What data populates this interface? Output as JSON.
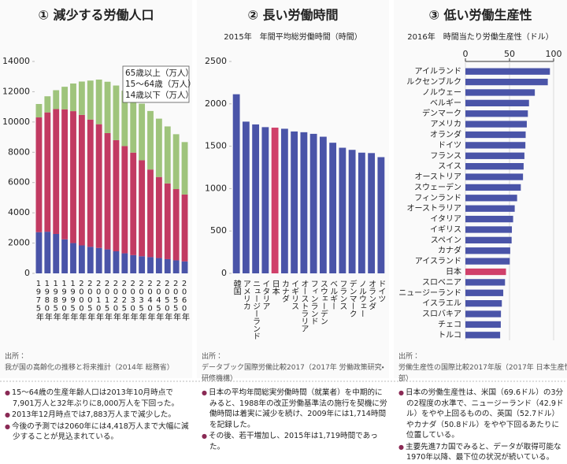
{
  "chart_data": [
    {
      "type": "bar",
      "stacked": true,
      "title": "① 減少する労働人口",
      "categories": [
        "1975年",
        "1980年",
        "1985年",
        "1990年",
        "1995年",
        "2000年",
        "2005年",
        "2010年",
        "2015年",
        "2020年",
        "2025年",
        "2030年",
        "2035年",
        "2040年",
        "2045年",
        "2050年",
        "2055年",
        "2060年"
      ],
      "series": [
        {
          "name": "14歳以下（万人）",
          "color": "#4a54a8",
          "values": [
            2722,
            2751,
            2603,
            2249,
            2001,
            1847,
            1752,
            1680,
            1583,
            1457,
            1324,
            1204,
            1129,
            1073,
            1012,
            939,
            861,
            791
          ]
        },
        {
          "name": "15～64歳（万人）",
          "color": "#c23a62",
          "values": [
            7581,
            7883,
            8251,
            8590,
            8716,
            8622,
            8409,
            8173,
            7682,
            7341,
            7085,
            6773,
            6343,
            5787,
            5353,
            5001,
            4706,
            4418
          ]
        },
        {
          "name": "65歳以上（万人）",
          "color": "#9fc47c",
          "values": [
            887,
            1065,
            1247,
            1489,
            1826,
            2204,
            2576,
            2948,
            3395,
            3612,
            3657,
            3685,
            3741,
            3868,
            3856,
            3768,
            3626,
            3464
          ]
        }
      ],
      "ylim": [
        0,
        14000
      ],
      "yticks": [
        0,
        2000,
        4000,
        6000,
        8000,
        10000,
        12000,
        14000
      ],
      "grid": false,
      "legend": "upper right",
      "source_label": "出所：",
      "source": "我が国の高齢化の推移と将来推計（2014年 総務省）",
      "notes": [
        "15～64歳の生産年齢人口は2013年10月時点で7,901万人と32年ぶりに8,000万人を下回った。",
        "2013年12月時点では7,883万人まで減少した。",
        "今後の予測では2060年には4,418万人まで大幅に減少することが見込まれている。"
      ]
    },
    {
      "type": "bar",
      "title": "② 長い労働時間",
      "subtitle": "2015年　年間平均総労働時間（時間）",
      "categories": [
        "韓国",
        "アメリカ",
        "ニュージーランド",
        "イタリア",
        "日本",
        "カナダ",
        "イギリス",
        "オーストラリア",
        "フィンランド",
        "スウェーデン",
        "ベルギー",
        "フランス",
        "デンマーク",
        "ノルウェー",
        "オランダ",
        "ドイツ"
      ],
      "values": [
        2113,
        1790,
        1757,
        1725,
        1719,
        1706,
        1674,
        1665,
        1646,
        1612,
        1541,
        1482,
        1457,
        1424,
        1419,
        1371
      ],
      "colors": [
        "#4a54a8",
        "#4a54a8",
        "#4a54a8",
        "#4a54a8",
        "#d0406a",
        "#4a54a8",
        "#4a54a8",
        "#4a54a8",
        "#4a54a8",
        "#4a54a8",
        "#4a54a8",
        "#4a54a8",
        "#4a54a8",
        "#4a54a8",
        "#4a54a8",
        "#4a54a8"
      ],
      "ylim": [
        0,
        2500
      ],
      "yticks": [
        0,
        500,
        1000,
        1500,
        2000,
        2500
      ],
      "grid": false,
      "source_label": "出所：",
      "source": "データブック国際労働比較2017（2017年 労働政策研究・研修機構）",
      "notes": [
        "日本の平均年間総実労働時間（就業者）を中期的にみると、1988年の改正労働基準法の施行を契機に労働時間は着実に減少を続け、2009年には1,714時間を記録した。",
        "その後、若干増加し、2015年は1,719時間であった。"
      ]
    },
    {
      "type": "bar",
      "orientation": "horizontal",
      "title": "③ 低い労働生産性",
      "subtitle": "2016年　時間当たり労働生産性（ドル）",
      "categories": [
        "アイルランド",
        "ルクセンブルク",
        "ノルウェー",
        "ベルギー",
        "デンマーク",
        "アメリカ",
        "オランダ",
        "ドイツ",
        "フランス",
        "スイス",
        "オーストリア",
        "スウェーデン",
        "フィンランド",
        "オーストラリア",
        "イタリア",
        "イギリス",
        "スペイン",
        "カナダ",
        "アイスランド",
        "日本",
        "スロベニア",
        "ニュージーランド",
        "イスラエル",
        "スロバキア",
        "チェコ",
        "トルコ"
      ],
      "values": [
        95.8,
        93.4,
        78.7,
        72.1,
        70.8,
        69.6,
        68.3,
        68.0,
        66.9,
        66.0,
        65.3,
        62.8,
        58.6,
        55.9,
        54.1,
        52.7,
        52.4,
        50.8,
        50.3,
        46.0,
        44.9,
        42.9,
        41.3,
        40.3,
        40.1,
        39.4
      ],
      "colors": [
        "#4a54a8",
        "#4a54a8",
        "#4a54a8",
        "#4a54a8",
        "#4a54a8",
        "#4a54a8",
        "#4a54a8",
        "#4a54a8",
        "#4a54a8",
        "#4a54a8",
        "#4a54a8",
        "#4a54a8",
        "#4a54a8",
        "#4a54a8",
        "#4a54a8",
        "#4a54a8",
        "#4a54a8",
        "#4a54a8",
        "#4a54a8",
        "#d0406a",
        "#4a54a8",
        "#4a54a8",
        "#4a54a8",
        "#4a54a8",
        "#4a54a8",
        "#4a54a8"
      ],
      "xlim": [
        0,
        100
      ],
      "xticks": [
        0,
        50,
        100
      ],
      "grid": true,
      "source_label": "出所：",
      "source": "労働生産性の国際比較2017年版（2017年 日本生産性本部）",
      "notes": [
        "日本の労働生産性は、米国（69.6ドル）の3分の2程度の水準で、ニュージーランド（42.9ドル）をやや上回るものの、英国（52.7ドル）やカナダ（50.8ドル）をやや下回るあたりに位置している。",
        "主要先進7カ国でみると、データが取得可能な1970年以降、最下位の状況が続いている。"
      ]
    }
  ]
}
